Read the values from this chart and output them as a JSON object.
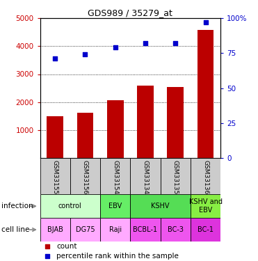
{
  "title": "GDS989 / 35279_at",
  "samples": [
    "GSM33155",
    "GSM33156",
    "GSM33154",
    "GSM33134",
    "GSM33135",
    "GSM33136"
  ],
  "counts": [
    1480,
    1610,
    2060,
    2590,
    2540,
    4580
  ],
  "percentiles": [
    71,
    74,
    79,
    82,
    82,
    97
  ],
  "ylim_left": [
    0,
    5000
  ],
  "ylim_right": [
    0,
    100
  ],
  "yticks_left": [
    1000,
    2000,
    3000,
    4000,
    5000
  ],
  "ytick_labels_left": [
    "1000",
    "2000",
    "3000",
    "4000",
    "5000"
  ],
  "yticks_right": [
    0,
    25,
    50,
    75,
    100
  ],
  "ytick_labels_right": [
    "0",
    "25",
    "50",
    "75",
    "100%"
  ],
  "bar_color": "#bb0000",
  "dot_color": "#0000cc",
  "infection_labels": [
    {
      "text": "control",
      "span": [
        0,
        2
      ],
      "color": "#ccffcc"
    },
    {
      "text": "EBV",
      "span": [
        2,
        3
      ],
      "color": "#66ee66"
    },
    {
      "text": "KSHV",
      "span": [
        3,
        5
      ],
      "color": "#55dd55"
    },
    {
      "text": "KSHV and\nEBV",
      "span": [
        5,
        6
      ],
      "color": "#88ee44"
    }
  ],
  "cell_line_labels": [
    {
      "text": "BJAB",
      "span": [
        0,
        1
      ],
      "color": "#ffaaff"
    },
    {
      "text": "DG75",
      "span": [
        1,
        2
      ],
      "color": "#ffaaff"
    },
    {
      "text": "Raji",
      "span": [
        2,
        3
      ],
      "color": "#ffaaff"
    },
    {
      "text": "BCBL-1",
      "span": [
        3,
        4
      ],
      "color": "#ee55ee"
    },
    {
      "text": "BC-3",
      "span": [
        4,
        5
      ],
      "color": "#ee55ee"
    },
    {
      "text": "BC-1",
      "span": [
        5,
        6
      ],
      "color": "#dd33dd"
    }
  ],
  "legend_count_color": "#bb0000",
  "legend_dot_color": "#0000cc",
  "left_label_color": "#cc0000",
  "right_label_color": "#0000cc",
  "sample_box_color": "#cccccc"
}
